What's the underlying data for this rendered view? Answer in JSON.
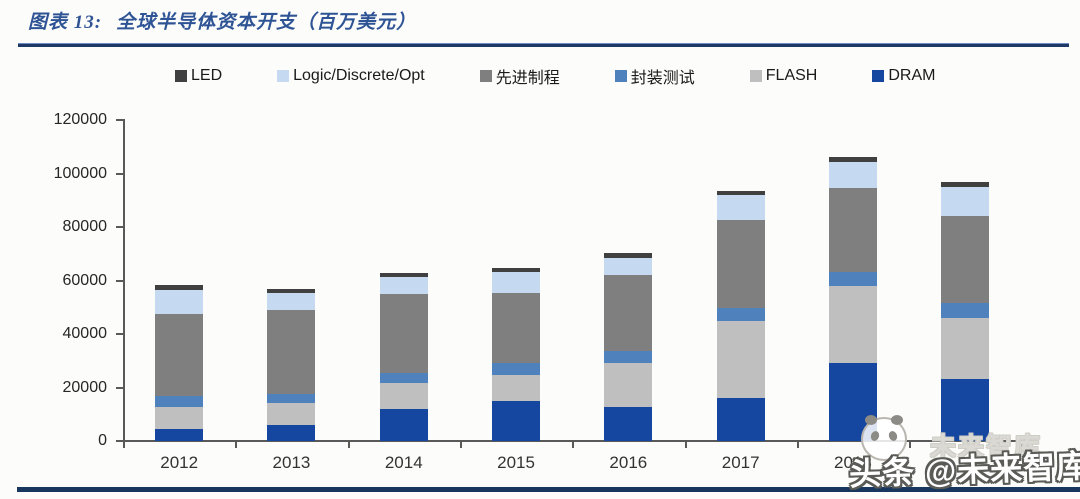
{
  "header": {
    "title_prefix": "图表 13:",
    "title_text": "全球半导体资本开支（百万美元）"
  },
  "chart_data": {
    "type": "bar",
    "stacked": true,
    "title": "全球半导体资本开支（百万美元）",
    "xlabel": "",
    "ylabel": "",
    "categories": [
      "2012",
      "2013",
      "2014",
      "2015",
      "2016",
      "2017",
      "2018",
      ""
    ],
    "series": [
      {
        "name": "DRAM",
        "color": "#1547a0",
        "values": [
          4500,
          6000,
          12000,
          14800,
          12900,
          16100,
          29000,
          23300
        ]
      },
      {
        "name": "FLASH",
        "color": "#bfbfbf",
        "values": [
          8300,
          8200,
          9700,
          10000,
          16300,
          28800,
          29000,
          22800
        ]
      },
      {
        "name": "封装测试",
        "color": "#4f81bd",
        "values": [
          4100,
          3500,
          3700,
          4400,
          4600,
          5000,
          5300,
          5400
        ]
      },
      {
        "name": "先进制程",
        "color": "#7f7f7f",
        "values": [
          30500,
          31300,
          29500,
          26200,
          28200,
          32600,
          31300,
          32600
        ]
      },
      {
        "name": "Logic/Discrete/Opt",
        "color": "#c5d9f1",
        "values": [
          9100,
          6300,
          6300,
          7600,
          6400,
          9400,
          9800,
          10900
        ]
      },
      {
        "name": "LED",
        "color": "#404040",
        "values": [
          1800,
          1500,
          1600,
          1600,
          1900,
          1600,
          1900,
          1900
        ]
      }
    ],
    "legend_order_top_to_bottom_stack": [
      "LED",
      "Logic/Discrete/Opt",
      "先进制程",
      "封装测试",
      "FLASH",
      "DRAM"
    ],
    "ylim": [
      0,
      120000
    ],
    "ytick_step": 20000,
    "ytick_labels": [
      "0",
      "20000",
      "40000",
      "60000",
      "80000",
      "100000",
      "120000"
    ],
    "legend_position": "top",
    "grid": false
  },
  "watermark": {
    "main_text": "头条 @未来智库",
    "ghost_text": "未来智库"
  },
  "colors": {
    "title_text": "#2f5496",
    "title_rule": "#1f3864",
    "bottom_rule": "#17375e",
    "axis": "#595959"
  }
}
